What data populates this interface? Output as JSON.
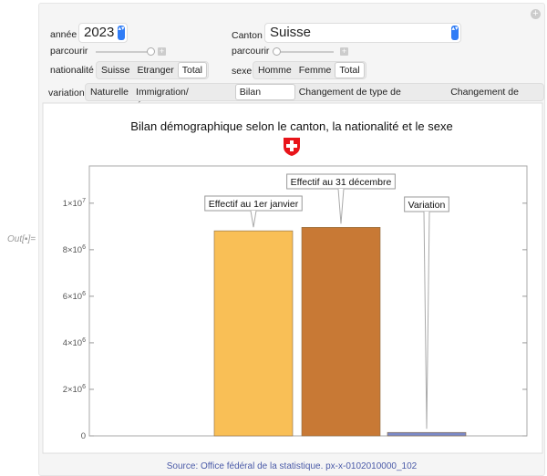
{
  "out_label": "Out[▪]=",
  "controls": {
    "annee": {
      "label": "année",
      "value": "2023"
    },
    "canton": {
      "label": "Canton",
      "value": "Suisse"
    },
    "parcourir_left": {
      "label": "parcourir",
      "position": 1.0
    },
    "parcourir_right": {
      "label": "parcourir",
      "position": 0.0
    },
    "nationalite": {
      "label": "nationalité",
      "options": [
        "Suisse",
        "Etranger",
        "Total"
      ],
      "selected": "Total"
    },
    "sexe": {
      "label": "sexe",
      "options": [
        "Homme",
        "Femme",
        "Total"
      ],
      "selected": "Total"
    },
    "variation": {
      "label": "variation",
      "options": [
        "Naturelle",
        "Immigration/Émigration",
        "Bilan annuel",
        "Changement de type de population",
        "Changement de sexe"
      ],
      "selected": "Bilan annuel"
    }
  },
  "chart_data": {
    "type": "bar",
    "title": "Bilan démographique selon le canton, la nationalité et le sexe",
    "categories": [
      "Effectif au 1er janvier",
      "Effectif au 31 décembre",
      "Variation"
    ],
    "values": [
      8812728,
      8960817,
      148089
    ],
    "colors": [
      "#f9bf56",
      "#c87935",
      "#7b8ac8"
    ],
    "ylim": [
      0,
      11600000
    ],
    "yticks": [
      {
        "v": 0,
        "label": "0"
      },
      {
        "v": 2000000,
        "label": "2×10",
        "exp": "6"
      },
      {
        "v": 4000000,
        "label": "4×10",
        "exp": "6"
      },
      {
        "v": 6000000,
        "label": "6×10",
        "exp": "6"
      },
      {
        "v": 8000000,
        "label": "8×10",
        "exp": "6"
      },
      {
        "v": 10000000,
        "label": "1×10",
        "exp": "7"
      }
    ],
    "legend": "callouts"
  },
  "source": "Source: Office fédéral de la statistique. px-x-0102010000_102"
}
